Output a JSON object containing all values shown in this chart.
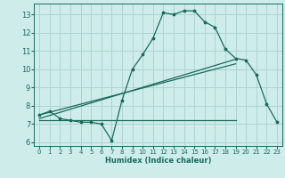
{
  "xlabel": "Humidex (Indice chaleur)",
  "ylabel": "",
  "xlim": [
    -0.5,
    23.5
  ],
  "ylim": [
    5.8,
    13.6
  ],
  "yticks": [
    6,
    7,
    8,
    9,
    10,
    11,
    12,
    13
  ],
  "xticks": [
    0,
    1,
    2,
    3,
    4,
    5,
    6,
    7,
    8,
    9,
    10,
    11,
    12,
    13,
    14,
    15,
    16,
    17,
    18,
    19,
    20,
    21,
    22,
    23
  ],
  "bg_color": "#ceecea",
  "grid_color": "#aed4d1",
  "line_color": "#1a6b5e",
  "curve1_x": [
    0,
    1,
    2,
    3,
    4,
    5,
    6,
    7,
    8,
    9,
    10,
    11,
    12,
    13,
    14,
    15,
    16,
    17,
    18,
    19,
    20,
    21,
    22,
    23
  ],
  "curve1_y": [
    7.5,
    7.7,
    7.3,
    7.2,
    7.1,
    7.1,
    7.0,
    6.1,
    8.3,
    10.0,
    10.8,
    11.7,
    13.1,
    13.0,
    13.2,
    13.2,
    12.6,
    12.3,
    11.1,
    10.6,
    10.5,
    9.7,
    8.1,
    7.1
  ],
  "curve2_x": [
    0,
    19
  ],
  "curve2_y": [
    7.2,
    7.2
  ],
  "curve3_x": [
    0,
    19
  ],
  "curve3_y": [
    7.5,
    10.3
  ],
  "curve4_x": [
    0,
    19
  ],
  "curve4_y": [
    7.3,
    10.55
  ]
}
